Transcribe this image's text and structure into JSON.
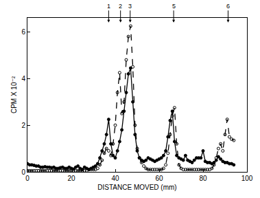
{
  "chart_data": {
    "type": "line",
    "x_label": "DISTANCE MOVED (mm)",
    "y_label": "CPM X 10⁻²",
    "xlim": [
      0,
      100
    ],
    "xticks": [
      0,
      20,
      40,
      60,
      80,
      100
    ],
    "ylim": [
      0,
      6.6
    ],
    "yticks": [
      0,
      2,
      4,
      6
    ],
    "grid": false,
    "x": [
      0,
      1,
      2,
      3,
      4,
      5,
      6,
      7,
      8,
      9,
      10,
      11,
      12,
      13,
      14,
      15,
      16,
      17,
      18,
      19,
      20,
      21,
      22,
      23,
      24,
      25,
      26,
      27,
      28,
      29,
      30,
      31,
      32,
      33,
      34,
      35,
      36,
      37,
      38,
      39,
      40,
      41,
      42,
      43,
      44,
      45,
      46,
      47,
      48,
      49,
      50,
      51,
      52,
      53,
      54,
      55,
      56,
      57,
      58,
      59,
      60,
      61,
      62,
      63,
      64,
      65,
      66,
      67,
      68,
      69,
      70,
      71,
      72,
      73,
      74,
      75,
      76,
      77,
      78,
      79,
      80,
      81,
      82,
      83,
      84,
      85,
      86,
      87,
      88,
      89,
      90,
      91,
      92,
      93,
      94
    ],
    "series": [
      {
        "color": "#000000",
        "marker": "filled",
        "line_style": "solid",
        "values": [
          0.35,
          0.3,
          0.3,
          0.28,
          0.25,
          0.25,
          0.2,
          0.2,
          0.22,
          0.2,
          0.2,
          0.18,
          0.2,
          0.15,
          0.15,
          0.18,
          0.2,
          0.15,
          0.15,
          0.2,
          0.15,
          0.12,
          0.2,
          0.25,
          0.15,
          0.1,
          0.2,
          0.15,
          0.1,
          0.15,
          0.2,
          0.25,
          0.35,
          0.6,
          0.9,
          1.2,
          1.6,
          2.25,
          1.2,
          0.7,
          0.6,
          0.9,
          1.3,
          1.8,
          2.6,
          3.4,
          4.2,
          4.45,
          3.0,
          1.6,
          0.9,
          0.6,
          0.5,
          0.45,
          0.5,
          0.6,
          0.55,
          0.5,
          0.45,
          0.5,
          0.55,
          0.6,
          0.7,
          0.9,
          1.5,
          2.2,
          2.6,
          1.3,
          0.7,
          0.6,
          0.55,
          0.5,
          0.7,
          0.5,
          0.45,
          0.4,
          0.5,
          0.6,
          0.6,
          0.6,
          0.9,
          0.45,
          0.4,
          0.4,
          0.35,
          0.4,
          0.5,
          0.65,
          0.55,
          0.45,
          0.4,
          0.4,
          0.35,
          0.35,
          0.3
        ]
      },
      {
        "color": "#000000",
        "marker": "open",
        "line_style": "dashed",
        "values": [
          0.05,
          0.05,
          0.05,
          0.05,
          0.05,
          0.05,
          0.05,
          0.05,
          0.05,
          0.05,
          0.05,
          0.05,
          0.05,
          0.05,
          0.05,
          0.05,
          0.05,
          0.05,
          0.05,
          0.05,
          0.05,
          0.05,
          0.05,
          0.05,
          0.05,
          0.05,
          0.05,
          0.05,
          0.1,
          0.1,
          0.1,
          0.1,
          0.15,
          0.3,
          0.5,
          0.8,
          1.0,
          0.9,
          0.7,
          1.2,
          2.0,
          3.4,
          4.25,
          2.5,
          3.0,
          4.8,
          5.8,
          6.25,
          4.5,
          2.0,
          1.0,
          0.6,
          0.4,
          0.25,
          0.15,
          0.1,
          0.1,
          0.1,
          0.1,
          0.1,
          0.1,
          0.1,
          0.15,
          0.3,
          0.8,
          1.6,
          2.4,
          2.75,
          1.2,
          0.3,
          0.15,
          0.1,
          0.1,
          0.1,
          0.1,
          0.1,
          0.1,
          0.1,
          0.1,
          0.1,
          0.1,
          0.1,
          0.1,
          0.1,
          0.15,
          0.3,
          0.6,
          1.0,
          1.2,
          0.9,
          1.6,
          2.25,
          1.5,
          1.4,
          1.35
        ]
      }
    ],
    "annotations": [
      {
        "x": 37,
        "text": "1"
      },
      {
        "x": 42.4,
        "text": "2"
      },
      {
        "x": 46.8,
        "text": "3"
      },
      {
        "x": 66.6,
        "text": "5"
      },
      {
        "x": 91.4,
        "text": "6"
      }
    ]
  }
}
